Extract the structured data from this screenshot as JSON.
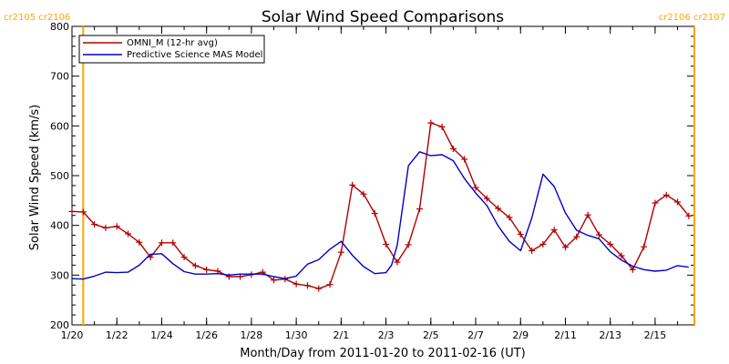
{
  "chart_data": {
    "type": "line",
    "title": "Solar Wind Speed Comparisons",
    "xlabel": "Month/Day from 2011-01-20 to 2011-02-16 (UT)",
    "ylabel": "Solar Wind Speed (km/s)",
    "xlim": [
      "2011-01-20",
      "2011-02-16T18:00"
    ],
    "ylim": [
      200,
      800
    ],
    "yticks": [
      200,
      300,
      400,
      500,
      600,
      700,
      800
    ],
    "xticks": [
      {
        "date": "2011-01-20",
        "label": "1/20"
      },
      {
        "date": "2011-01-22",
        "label": "1/22"
      },
      {
        "date": "2011-01-24",
        "label": "1/24"
      },
      {
        "date": "2011-01-26",
        "label": "1/26"
      },
      {
        "date": "2011-01-28",
        "label": "1/28"
      },
      {
        "date": "2011-01-30",
        "label": "1/30"
      },
      {
        "date": "2011-02-01",
        "label": "2/1"
      },
      {
        "date": "2011-02-03",
        "label": "2/3"
      },
      {
        "date": "2011-02-05",
        "label": "2/5"
      },
      {
        "date": "2011-02-07",
        "label": "2/7"
      },
      {
        "date": "2011-02-09",
        "label": "2/9"
      },
      {
        "date": "2011-02-11",
        "label": "2/11"
      },
      {
        "date": "2011-02-13",
        "label": "2/13"
      },
      {
        "date": "2011-02-15",
        "label": "2/15"
      }
    ],
    "grid": false,
    "legend_position": "top-left",
    "carrington_markers": [
      {
        "date": "2011-01-20T12:00",
        "label": "cr2105 cr2106",
        "side": "left"
      },
      {
        "date": "2011-02-16T18:00",
        "label": "cr2106 cr2107",
        "side": "right"
      }
    ],
    "series": [
      {
        "name": "OMNI_M (12-hr avg)",
        "color": "#B00000",
        "marker": "plus",
        "x": [
          "2011-01-20T00:00",
          "2011-01-20T12:00",
          "2011-01-21T00:00",
          "2011-01-21T12:00",
          "2011-01-22T00:00",
          "2011-01-22T12:00",
          "2011-01-23T00:00",
          "2011-01-23T12:00",
          "2011-01-24T00:00",
          "2011-01-24T12:00",
          "2011-01-25T00:00",
          "2011-01-25T12:00",
          "2011-01-26T00:00",
          "2011-01-26T12:00",
          "2011-01-27T00:00",
          "2011-01-27T12:00",
          "2011-01-28T00:00",
          "2011-01-28T12:00",
          "2011-01-29T00:00",
          "2011-01-29T12:00",
          "2011-01-30T00:00",
          "2011-01-30T12:00",
          "2011-01-31T00:00",
          "2011-01-31T12:00",
          "2011-02-01T00:00",
          "2011-02-01T12:00",
          "2011-02-02T00:00",
          "2011-02-02T12:00",
          "2011-02-03T00:00",
          "2011-02-03T12:00",
          "2011-02-04T00:00",
          "2011-02-04T12:00",
          "2011-02-05T00:00",
          "2011-02-05T12:00",
          "2011-02-06T00:00",
          "2011-02-06T12:00",
          "2011-02-07T00:00",
          "2011-02-07T12:00",
          "2011-02-08T00:00",
          "2011-02-08T12:00",
          "2011-02-09T00:00",
          "2011-02-09T12:00",
          "2011-02-10T00:00",
          "2011-02-10T12:00",
          "2011-02-11T00:00",
          "2011-02-11T12:00",
          "2011-02-12T00:00",
          "2011-02-12T12:00",
          "2011-02-13T00:00",
          "2011-02-13T12:00",
          "2011-02-14T00:00",
          "2011-02-14T12:00",
          "2011-02-15T00:00",
          "2011-02-15T12:00",
          "2011-02-16T00:00",
          "2011-02-16T12:00"
        ],
        "values": [
          428,
          427,
          402,
          395,
          398,
          383,
          366,
          336,
          365,
          365,
          336,
          319,
          311,
          308,
          297,
          297,
          301,
          306,
          290,
          292,
          282,
          279,
          273,
          281,
          346,
          481,
          463,
          424,
          362,
          326,
          361,
          433,
          606,
          598,
          554,
          533,
          476,
          454,
          434,
          416,
          382,
          349,
          362,
          391,
          356,
          377,
          421,
          381,
          362,
          339,
          311,
          357,
          445,
          461,
          447,
          419
        ]
      },
      {
        "name": "Predictive Science MAS Model",
        "color": "#0000CC",
        "marker": "none",
        "x": [
          "2011-01-20T00:00",
          "2011-01-20T12:00",
          "2011-01-21T00:00",
          "2011-01-21T12:00",
          "2011-01-22T00:00",
          "2011-01-22T12:00",
          "2011-01-23T00:00",
          "2011-01-23T12:00",
          "2011-01-24T00:00",
          "2011-01-24T12:00",
          "2011-01-25T00:00",
          "2011-01-25T12:00",
          "2011-01-26T00:00",
          "2011-01-26T12:00",
          "2011-01-27T00:00",
          "2011-01-27T12:00",
          "2011-01-28T00:00",
          "2011-01-28T12:00",
          "2011-01-29T00:00",
          "2011-01-29T12:00",
          "2011-01-30T00:00",
          "2011-01-30T12:00",
          "2011-01-31T00:00",
          "2011-01-31T12:00",
          "2011-02-01T00:00",
          "2011-02-01T12:00",
          "2011-02-02T00:00",
          "2011-02-02T12:00",
          "2011-02-03T00:00",
          "2011-02-03T06:00",
          "2011-02-03T12:00",
          "2011-02-04T00:00",
          "2011-02-04T12:00",
          "2011-02-05T00:00",
          "2011-02-05T12:00",
          "2011-02-06T00:00",
          "2011-02-06T12:00",
          "2011-02-07T00:00",
          "2011-02-07T12:00",
          "2011-02-08T00:00",
          "2011-02-08T12:00",
          "2011-02-09T00:00",
          "2011-02-09T12:00",
          "2011-02-10T00:00",
          "2011-02-10T12:00",
          "2011-02-11T00:00",
          "2011-02-11T12:00",
          "2011-02-12T00:00",
          "2011-02-12T12:00",
          "2011-02-13T00:00",
          "2011-02-13T12:00",
          "2011-02-14T00:00",
          "2011-02-14T12:00",
          "2011-02-15T00:00",
          "2011-02-15T12:00",
          "2011-02-16T00:00",
          "2011-02-16T12:00"
        ],
        "values": [
          293,
          292,
          298,
          306,
          305,
          306,
          320,
          342,
          343,
          323,
          307,
          302,
          302,
          303,
          300,
          302,
          302,
          302,
          297,
          293,
          298,
          322,
          331,
          352,
          368,
          340,
          317,
          303,
          305,
          320,
          360,
          520,
          548,
          540,
          542,
          530,
          494,
          465,
          440,
          399,
          368,
          349,
          415,
          503,
          478,
          425,
          390,
          380,
          373,
          347,
          330,
          318,
          311,
          308,
          310,
          319,
          316
        ]
      }
    ]
  }
}
